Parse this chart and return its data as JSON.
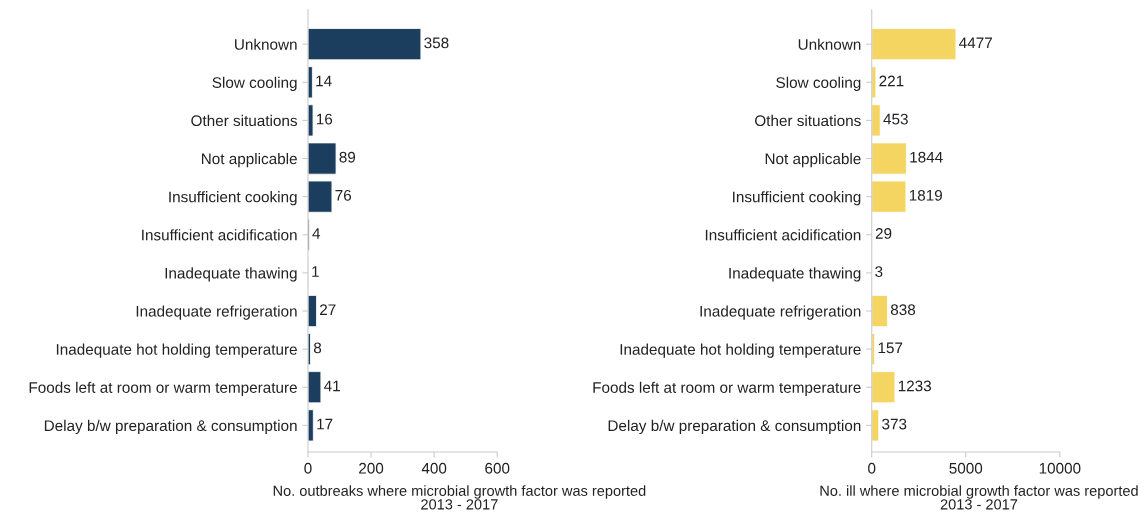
{
  "chart_data": [
    {
      "type": "bar",
      "orientation": "horizontal",
      "categories": [
        "Unknown",
        "Slow cooling",
        "Other situations",
        "Not applicable",
        "Insufficient cooking",
        "Insufficient acidification",
        "Inadequate thawing",
        "Inadequate refrigeration",
        "Inadequate hot holding temperature",
        "Foods left at room or warm temperature",
        "Delay b/w preparation & consumption"
      ],
      "values": [
        358,
        14,
        16,
        89,
        76,
        4,
        1,
        27,
        8,
        41,
        17
      ],
      "color": "#1b3d5e",
      "data_labels": true,
      "xlabel": "No. outbreaks where microbial growth factor was reported\n2013 - 2017",
      "xlim": [
        0,
        600
      ],
      "xticks": [
        0,
        200,
        400,
        600
      ],
      "grid": false
    },
    {
      "type": "bar",
      "orientation": "horizontal",
      "categories": [
        "Unknown",
        "Slow cooling",
        "Other situations",
        "Not applicable",
        "Insufficient cooking",
        "Insufficient acidification",
        "Inadequate thawing",
        "Inadequate refrigeration",
        "Inadequate hot holding temperature",
        "Foods left at room or warm temperature",
        "Delay b/w preparation & consumption"
      ],
      "values": [
        4477,
        221,
        453,
        1844,
        1819,
        29,
        3,
        838,
        157,
        1233,
        373
      ],
      "color": "#f5d562",
      "data_labels": true,
      "xlabel": "No. ill where microbial growth factor was reported\n2013 - 2017",
      "xlim": [
        0,
        10000
      ],
      "xticks": [
        0,
        5000,
        10000
      ],
      "grid": false
    }
  ]
}
